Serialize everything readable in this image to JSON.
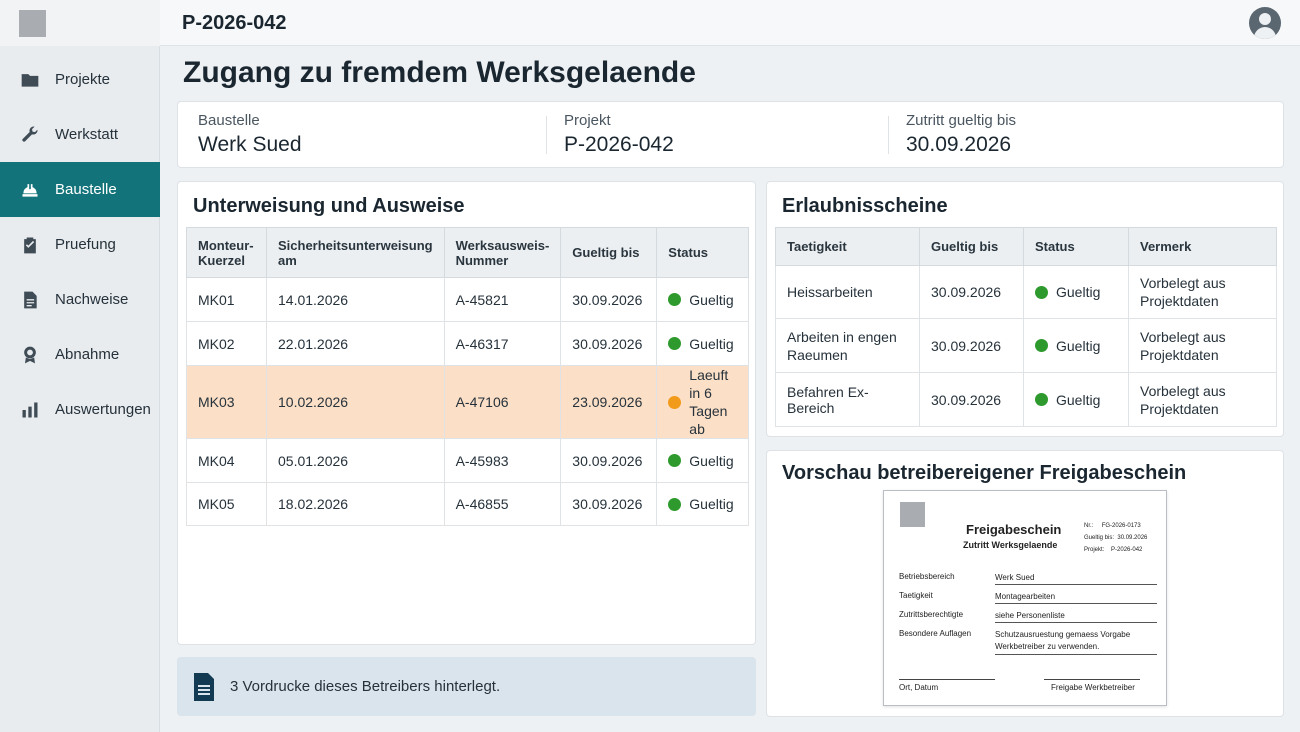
{
  "header": {
    "project_id": "P-2026-042"
  },
  "sidebar": {
    "items": [
      {
        "label": "Projekte",
        "icon": "folder-icon"
      },
      {
        "label": "Werkstatt",
        "icon": "wrench-icon"
      },
      {
        "label": "Baustelle",
        "icon": "hardhat-icon",
        "active": true
      },
      {
        "label": "Pruefung",
        "icon": "clipboard-check-icon"
      },
      {
        "label": "Nachweise",
        "icon": "document-icon"
      },
      {
        "label": "Abnahme",
        "icon": "award-icon"
      },
      {
        "label": "Auswertungen",
        "icon": "bar-chart-icon"
      }
    ]
  },
  "page": {
    "title": "Zugang zu fremdem Werksgelaende"
  },
  "info": {
    "baustelle_label": "Baustelle",
    "baustelle_value": "Werk Sued",
    "projekt_label": "Projekt",
    "projekt_value": "P-2026-042",
    "zutritt_label": "Zutritt gueltig bis",
    "zutritt_value": "30.09.2026"
  },
  "unterweisung": {
    "title": "Unterweisung und Ausweise",
    "columns": [
      "Monteur-Kuerzel",
      "Sicherheitsunterweisung am",
      "Werksausweis-Nummer",
      "Gueltig bis",
      "Status"
    ],
    "rows": [
      {
        "kuerzel": "MK01",
        "unterweisung": "14.01.2026",
        "ausweis": "A-45821",
        "gueltig": "30.09.2026",
        "status": "Gueltig",
        "level": "ok"
      },
      {
        "kuerzel": "MK02",
        "unterweisung": "22.01.2026",
        "ausweis": "A-46317",
        "gueltig": "30.09.2026",
        "status": "Gueltig",
        "level": "ok"
      },
      {
        "kuerzel": "MK03",
        "unterweisung": "10.02.2026",
        "ausweis": "A-47106",
        "gueltig": "23.09.2026",
        "status": "Laeuft in 6 Tagen ab",
        "level": "warn"
      },
      {
        "kuerzel": "MK04",
        "unterweisung": "05.01.2026",
        "ausweis": "A-45983",
        "gueltig": "30.09.2026",
        "status": "Gueltig",
        "level": "ok"
      },
      {
        "kuerzel": "MK05",
        "unterweisung": "18.02.2026",
        "ausweis": "A-46855",
        "gueltig": "30.09.2026",
        "status": "Gueltig",
        "level": "ok"
      }
    ]
  },
  "erlaubnis": {
    "title": "Erlaubnisscheine",
    "columns": [
      "Taetigkeit",
      "Gueltig bis",
      "Status",
      "Vermerk"
    ],
    "rows": [
      {
        "taetigkeit": "Heissarbeiten",
        "gueltig": "30.09.2026",
        "status": "Gueltig",
        "vermerk": "Vorbelegt aus Projektdaten"
      },
      {
        "taetigkeit": "Arbeiten in engen Raeumen",
        "gueltig": "30.09.2026",
        "status": "Gueltig",
        "vermerk": "Vorbelegt aus Projektdaten"
      },
      {
        "taetigkeit": "Befahren Ex-Bereich",
        "gueltig": "30.09.2026",
        "status": "Gueltig",
        "vermerk": "Vorbelegt aus Projektdaten"
      }
    ]
  },
  "notice": {
    "text": "3 Vordrucke dieses Betreibers hinterlegt."
  },
  "preview": {
    "title": "Vorschau betreibereigener Freigabeschein",
    "doc_title": "Freigabeschein",
    "doc_subtitle": "Zutritt Werksgelaende",
    "meta": [
      {
        "label": "Nr.:",
        "value": "FG-2026-0173"
      },
      {
        "label": "Gueltig bis:",
        "value": "30.09.2026"
      },
      {
        "label": "Projekt:",
        "value": "P-2026-042"
      }
    ],
    "fields": [
      {
        "label": "Betriebsbereich",
        "value": "Werk Sued"
      },
      {
        "label": "Taetigkeit",
        "value": "Montagearbeiten"
      },
      {
        "label": "Zutrittsberechtigte",
        "value": "siehe Personenliste"
      },
      {
        "label": "Besondere Auflagen",
        "value": "Schutzausruestung gemaess Vorgabe Werkbetreiber zu verwenden."
      }
    ],
    "sig_left": "Ort, Datum",
    "sig_right": "Freigabe Werkbetreiber"
  },
  "colors": {
    "accent": "#12737a",
    "ok": "#2e9a2e",
    "warn": "#f29a1a",
    "warn_row": "#fbdfc6"
  }
}
